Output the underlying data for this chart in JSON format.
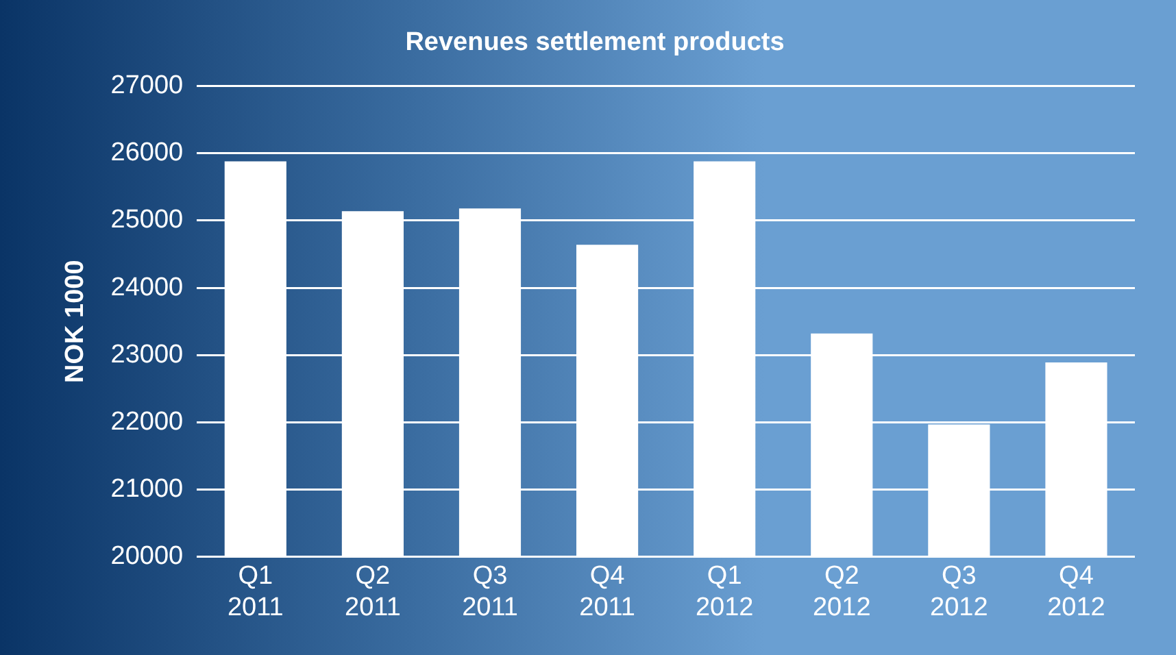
{
  "chart_data": {
    "type": "bar",
    "title": "Revenues settlement products",
    "ylabel": "NOK 1000",
    "categories": [
      "Q1 2011",
      "Q2 2011",
      "Q3 2011",
      "Q4 2011",
      "Q1 2012",
      "Q2 2012",
      "Q3 2012",
      "Q4 2012"
    ],
    "values": [
      25880,
      25140,
      25180,
      24640,
      25880,
      23320,
      21970,
      22890
    ],
    "color": "#ffffff",
    "ylim": [
      20000,
      27000
    ],
    "yticks": [
      20000,
      21000,
      22000,
      23000,
      24000,
      25000,
      26000,
      27000
    ],
    "grid": "y",
    "legend": false
  }
}
